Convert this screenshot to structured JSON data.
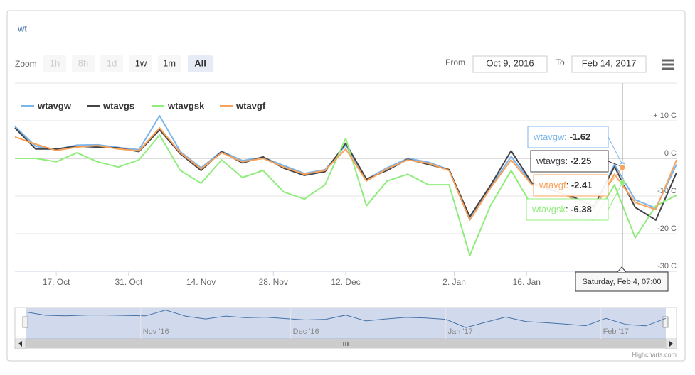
{
  "chart_data": {
    "type": "line",
    "title": "wt",
    "range_selector": {
      "label": "Zoom",
      "buttons": [
        "1h",
        "8h",
        "1d",
        "1w",
        "1m",
        "All"
      ],
      "disabled": [
        0,
        1,
        2
      ],
      "selected": 5,
      "from_label": "From",
      "from": "Oct 9, 2016",
      "to_label": "To",
      "to": "Feb 14, 2017"
    },
    "x": [
      "2016-10-09",
      "2016-10-13",
      "2016-10-17",
      "2016-10-21",
      "2016-10-25",
      "2016-10-29",
      "2016-11-02",
      "2016-11-06",
      "2016-11-10",
      "2016-11-14",
      "2016-11-18",
      "2016-11-22",
      "2016-11-26",
      "2016-11-30",
      "2016-12-04",
      "2016-12-08",
      "2016-12-12",
      "2016-12-16",
      "2016-12-20",
      "2016-12-24",
      "2016-12-28",
      "2017-01-01",
      "2017-01-05",
      "2017-01-09",
      "2017-01-13",
      "2017-01-17",
      "2017-01-21",
      "2017-01-25",
      "2017-01-29",
      "2017-02-02",
      "2017-02-06",
      "2017-02-10",
      "2017-02-14"
    ],
    "xlim": [
      "2016-10-09",
      "2017-02-14"
    ],
    "xticks": [
      {
        "value": "2016-10-17",
        "label": "17. Oct"
      },
      {
        "value": "2016-10-31",
        "label": "31. Oct"
      },
      {
        "value": "2016-11-14",
        "label": "14. Nov"
      },
      {
        "value": "2016-11-28",
        "label": "28. Nov"
      },
      {
        "value": "2016-12-12",
        "label": "12. Dec"
      },
      {
        "value": "2017-01-02",
        "label": "2. Jan"
      },
      {
        "value": "2017-01-16",
        "label": "16. Jan"
      }
    ],
    "ylim": [
      -30,
      12
    ],
    "yticks": [
      {
        "value": 10,
        "label": "+ 10 C"
      },
      {
        "value": 0,
        "label": "0 C"
      },
      {
        "value": -10,
        "label": "-10 C"
      },
      {
        "value": -20,
        "label": "-20 C"
      },
      {
        "value": -30,
        "label": "-30 C"
      }
    ],
    "grid": true,
    "legend": "top-left",
    "series": [
      {
        "name": "wtavgw",
        "color": "#7cb5ec",
        "values": [
          8.5,
          3.2,
          2.4,
          3.5,
          3.6,
          2.9,
          2.3,
          11.3,
          1.8,
          -2.5,
          1.9,
          -0.6,
          0.3,
          -1.9,
          -4,
          -3,
          3.5,
          -5.6,
          -2.5,
          0,
          -1,
          -3,
          -15.8,
          -7.5,
          0.5,
          -6.6,
          -8.3,
          -10.5,
          -13,
          -1.6,
          -11,
          -13.2,
          -1.6
        ]
      },
      {
        "name": "wtavgs",
        "color": "#434348",
        "values": [
          8.1,
          2.5,
          2.5,
          3.2,
          3,
          2.8,
          1.8,
          7.6,
          1.2,
          -3.2,
          1.8,
          -1.2,
          0.4,
          -2.6,
          -4.5,
          -3.5,
          4,
          -5.5,
          -3.2,
          -0.2,
          -1.6,
          -3,
          -15.5,
          -7.2,
          2,
          -6.5,
          -8.5,
          -10.2,
          -12.8,
          -2.2,
          -13,
          -16.4,
          -3.8
        ]
      },
      {
        "name": "wtavgsk",
        "color": "#90ed7d",
        "values": [
          0,
          0,
          -0.9,
          1.5,
          -0.9,
          -2.3,
          -0.4,
          6.2,
          -3.2,
          -6.6,
          -0.4,
          -5.1,
          -3.2,
          -8.9,
          -10.8,
          -7,
          5.3,
          -12.6,
          -6,
          -4.2,
          -7,
          -7,
          -25.8,
          -12.6,
          -3.2,
          -12.6,
          -12.6,
          -15.5,
          -16.4,
          -7,
          -21.1,
          -12.6,
          -9.8
        ]
      },
      {
        "name": "wtavgf",
        "color": "#f7a35c",
        "values": [
          5.7,
          3.8,
          2.1,
          3,
          3.4,
          2.5,
          2,
          8.1,
          1.5,
          -2.8,
          1.5,
          -0.9,
          0,
          -2.3,
          -4.2,
          -3.2,
          2.5,
          -6,
          -2.8,
          -0.4,
          -1.3,
          -3.2,
          -16.4,
          -7.9,
          -0.4,
          -7,
          -7.9,
          -10.8,
          -13.6,
          -4.2,
          -11.7,
          -13.6,
          -0.4
        ]
      }
    ],
    "tooltip": {
      "header": "Saturday, Feb 4, 07:00",
      "values": [
        -1.62,
        -2.25,
        -6.38,
        -2.41
      ]
    },
    "navigator": {
      "labels": [
        {
          "value": "2016-11-01",
          "label": "Nov '16"
        },
        {
          "value": "2016-12-01",
          "label": "Dec '16"
        },
        {
          "value": "2017-01-01",
          "label": "Jan '17"
        },
        {
          "value": "2017-02-01",
          "label": "Feb '17"
        }
      ]
    },
    "credits": "Highcharts.com"
  }
}
